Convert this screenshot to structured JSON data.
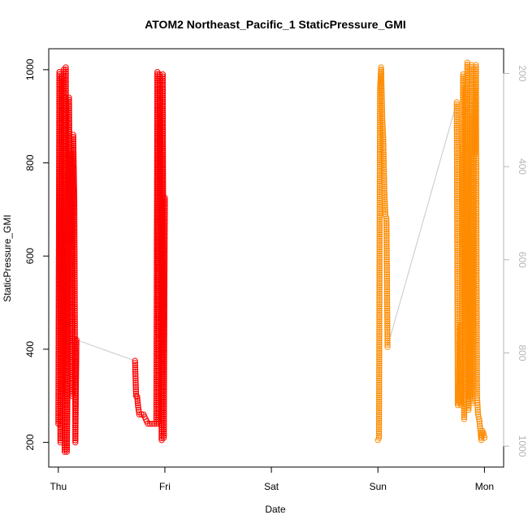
{
  "chart_data": {
    "type": "scatter",
    "title": "ATOM2 Northeast_Pacific_1 StaticPressure_GMI",
    "xlabel": "Date",
    "ylabel": "StaticPressure_GMI",
    "x_ticks": [
      "Thu",
      "Fri",
      "Sat",
      "Sun",
      "Mon"
    ],
    "x_range_days": [
      -0.09,
      4.18
    ],
    "y_ticks": [
      200,
      400,
      600,
      800,
      1000
    ],
    "ylim": [
      147,
      1045
    ],
    "y2_ticks": [
      200,
      400,
      600,
      800,
      1000
    ],
    "y2_reversed": true,
    "grid": false,
    "colors": {
      "series1": "#ff0000",
      "series2": "#ff8c00",
      "trace": "#c8c8c8"
    },
    "series": [
      {
        "marker": "open-circle",
        "color": "#ff0000",
        "x_day_offset": [
          0.0,
          0.01,
          0.02,
          0.03,
          0.04,
          0.05,
          0.06,
          0.07,
          0.08,
          0.09,
          0.1,
          0.11,
          0.12,
          0.13,
          0.14,
          0.15,
          0.16,
          0.17,
          0.72,
          0.73,
          0.74,
          0.75,
          0.76,
          0.8,
          0.84,
          0.88,
          0.92,
          0.93,
          0.94,
          0.95,
          0.96,
          0.97,
          0.98,
          0.99,
          1.0
        ],
        "y": [
          240,
          995,
          200,
          985,
          300,
          1000,
          180,
          1005,
          180,
          390,
          940,
          630,
          820,
          300,
          860,
          720,
          200,
          420,
          375,
          300,
          298,
          275,
          260,
          260,
          240,
          240,
          240,
          995,
          240,
          990,
          820,
          205,
          990,
          210,
          725
        ]
      },
      {
        "marker": "open-circle",
        "color": "#ff8c00",
        "x_day_offset": [
          3.0,
          3.01,
          3.02,
          3.03,
          3.04,
          3.05,
          3.06,
          3.07,
          3.08,
          3.09,
          3.74,
          3.75,
          3.76,
          3.77,
          3.78,
          3.79,
          3.8,
          3.81,
          3.82,
          3.83,
          3.84,
          3.85,
          3.86,
          3.87,
          3.88,
          3.89,
          3.9,
          3.91,
          3.92,
          3.93,
          3.94,
          3.95,
          3.96,
          3.97,
          3.98,
          3.99,
          4.0
        ],
        "y": [
          205,
          210,
          960,
          1005,
          900,
          850,
          740,
          690,
          680,
          405,
          930,
          280,
          290,
          450,
          280,
          440,
          990,
          250,
          960,
          300,
          1015,
          270,
          640,
          300,
          1010,
          285,
          900,
          820,
          1010,
          300,
          260,
          250,
          230,
          205,
          225,
          220,
          210
        ]
      }
    ]
  }
}
